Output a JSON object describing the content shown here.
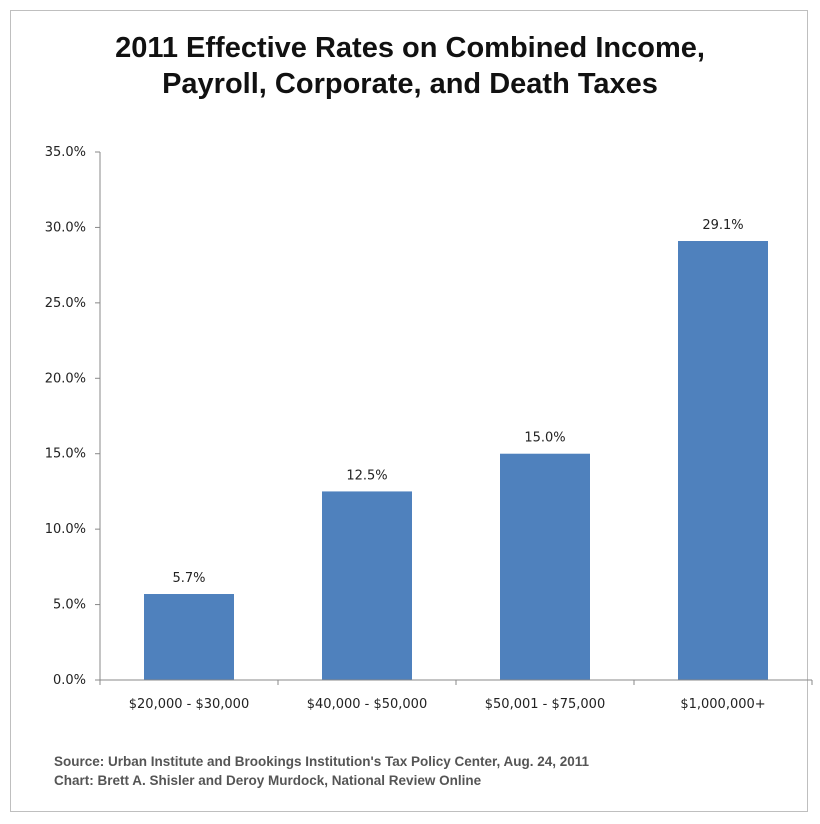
{
  "title_lines": [
    "2011 Effective Rates on Combined Income,",
    "Payroll, Corporate, and Death Taxes"
  ],
  "source_lines": [
    "Source: Urban Institute and Brookings Institution's Tax Policy Center, Aug. 24, 2011",
    "Chart: Brett A. Shisler and Deroy Murdock, National Review Online"
  ],
  "chart_data": {
    "type": "bar",
    "title": "2011 Effective Rates on Combined Income, Payroll, Corporate, and Death Taxes",
    "categories": [
      "$20,000 - $30,000",
      "$40,000 - $50,000",
      "$50,001 - $75,000",
      "$1,000,000+"
    ],
    "values": [
      5.7,
      12.5,
      15.0,
      29.1
    ],
    "data_labels": [
      "5.7%",
      "12.5%",
      "15.0%",
      "29.1%"
    ],
    "xlabel": "",
    "ylabel": "",
    "ylim": [
      0,
      35
    ],
    "yticks": [
      0,
      5,
      10,
      15,
      20,
      25,
      30,
      35
    ],
    "ytick_labels": [
      "0.0%",
      "5.0%",
      "10.0%",
      "15.0%",
      "20.0%",
      "25.0%",
      "30.0%",
      "35.0%"
    ],
    "grid": false,
    "legend": "none",
    "bar_color": "#4f81bd"
  }
}
